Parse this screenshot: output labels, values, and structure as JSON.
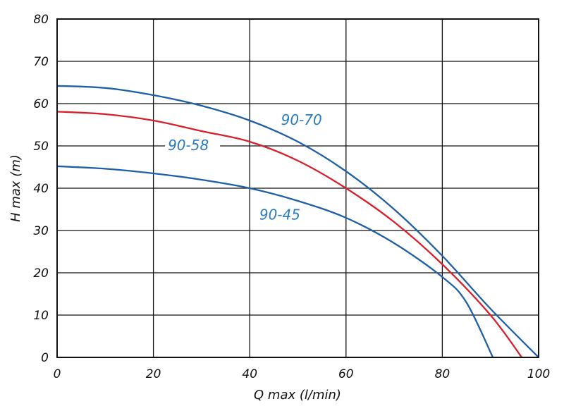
{
  "chart_data": {
    "type": "line",
    "xlabel": "Q max (l/min)",
    "ylabel": "H max (m)",
    "xlim": [
      0,
      100
    ],
    "ylim": [
      0,
      80
    ],
    "x_ticks": [
      "0",
      "20",
      "40",
      "60",
      "80",
      "100"
    ],
    "y_ticks": [
      "0",
      "10",
      "20",
      "30",
      "40",
      "50",
      "60",
      "70",
      "80"
    ],
    "grid": true,
    "series": [
      {
        "name": "90-70",
        "color": "#1f5fa8",
        "label_color": "#2a7bbf",
        "points": [
          [
            0,
            64.2
          ],
          [
            10,
            63.7
          ],
          [
            20,
            62
          ],
          [
            30,
            59.5
          ],
          [
            40,
            56
          ],
          [
            50,
            51
          ],
          [
            60,
            44
          ],
          [
            70,
            35
          ],
          [
            80,
            24
          ],
          [
            90,
            11.5
          ],
          [
            100,
            0
          ]
        ]
      },
      {
        "name": "90-58",
        "color": "#d8202c",
        "label_color": "#2a7bbf",
        "points": [
          [
            0,
            58.1
          ],
          [
            10,
            57.5
          ],
          [
            20,
            56
          ],
          [
            30,
            53.5
          ],
          [
            40,
            51
          ],
          [
            50,
            46.5
          ],
          [
            60,
            40
          ],
          [
            70,
            32
          ],
          [
            80,
            22
          ],
          [
            90,
            10
          ],
          [
            96.5,
            0
          ]
        ]
      },
      {
        "name": "90-45",
        "color": "#1f5fa8",
        "label_color": "#2a7bbf",
        "points": [
          [
            0,
            45.2
          ],
          [
            10,
            44.6
          ],
          [
            20,
            43.5
          ],
          [
            30,
            42
          ],
          [
            40,
            40
          ],
          [
            50,
            37
          ],
          [
            60,
            33
          ],
          [
            70,
            27
          ],
          [
            80,
            19
          ],
          [
            85,
            13
          ],
          [
            90.5,
            0
          ]
        ]
      }
    ]
  }
}
